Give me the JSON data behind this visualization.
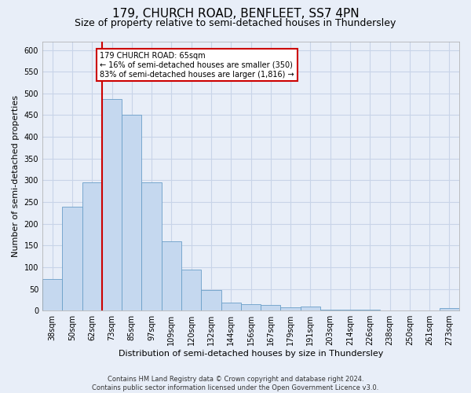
{
  "title": "179, CHURCH ROAD, BENFLEET, SS7 4PN",
  "subtitle": "Size of property relative to semi-detached houses in Thundersley",
  "xlabel": "Distribution of semi-detached houses by size in Thundersley",
  "ylabel": "Number of semi-detached properties",
  "footer": "Contains HM Land Registry data © Crown copyright and database right 2024.\nContains public sector information licensed under the Open Government Licence v3.0.",
  "categories": [
    "38sqm",
    "50sqm",
    "62sqm",
    "73sqm",
    "85sqm",
    "97sqm",
    "109sqm",
    "120sqm",
    "132sqm",
    "144sqm",
    "156sqm",
    "167sqm",
    "179sqm",
    "191sqm",
    "203sqm",
    "214sqm",
    "226sqm",
    "238sqm",
    "250sqm",
    "261sqm",
    "273sqm"
  ],
  "values": [
    72,
    240,
    295,
    487,
    450,
    295,
    160,
    95,
    48,
    18,
    14,
    13,
    7,
    10,
    3,
    3,
    2,
    1,
    0,
    0,
    5
  ],
  "bar_color": "#c5d8ef",
  "bar_edge_color": "#6a9fc8",
  "property_line_x": 2.5,
  "property_line_label": "179 CHURCH ROAD: 65sqm",
  "pct_smaller": "16% of semi-detached houses are smaller (350)",
  "pct_larger": "83% of semi-detached houses are larger (1,816)",
  "annotation_box_color": "#ffffff",
  "annotation_box_edge_color": "#cc0000",
  "vline_color": "#cc0000",
  "ylim": [
    0,
    620
  ],
  "yticks": [
    0,
    50,
    100,
    150,
    200,
    250,
    300,
    350,
    400,
    450,
    500,
    550,
    600
  ],
  "title_fontsize": 11,
  "subtitle_fontsize": 9,
  "xlabel_fontsize": 8,
  "ylabel_fontsize": 8,
  "tick_fontsize": 7,
  "grid_color": "#c8d4e8",
  "background_color": "#e8eef8"
}
